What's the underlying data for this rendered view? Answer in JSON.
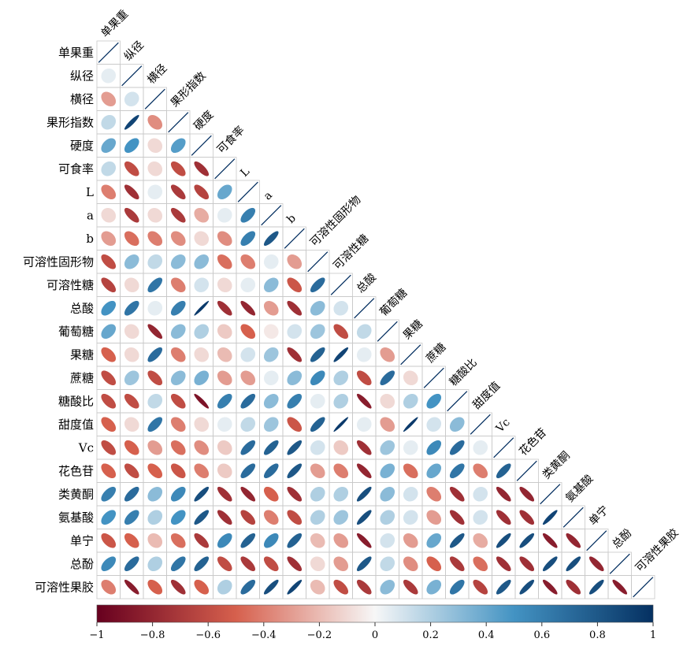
{
  "chart_data": {
    "type": "heatmap",
    "subtype": "correlation-ellipse-lower-triangle",
    "variables": [
      "单果重",
      "纵径",
      "横径",
      "果形指数",
      "硬度",
      "可食率",
      "L",
      "a",
      "b",
      "可溶性固形物",
      "可溶性糖",
      "总酸",
      "葡萄糖",
      "果糖",
      "蔗糖",
      "糖酸比",
      "甜度值",
      "Vc",
      "花色苷",
      "类黄酮",
      "氨基酸",
      "单宁",
      "总酚",
      "可溶性果胶"
    ],
    "matrix": [
      [
        1
      ],
      [
        0.05,
        1
      ],
      [
        -0.3,
        0.1,
        1
      ],
      [
        0.15,
        0.9,
        -0.35,
        1
      ],
      [
        0.4,
        0.5,
        -0.1,
        0.45,
        1
      ],
      [
        0.15,
        -0.6,
        -0.1,
        -0.6,
        -0.75,
        1
      ],
      [
        -0.4,
        -0.75,
        0.05,
        -0.7,
        -0.65,
        0.4,
        1
      ],
      [
        -0.1,
        -0.7,
        -0.1,
        -0.7,
        -0.25,
        0.05,
        0.6,
        1
      ],
      [
        -0.3,
        -0.45,
        -0.4,
        -0.35,
        -0.1,
        -0.35,
        0.6,
        0.8,
        1
      ],
      [
        -0.6,
        0.3,
        0.15,
        0.3,
        0.3,
        -0.45,
        -0.4,
        0.05,
        -0.3,
        1
      ],
      [
        -0.65,
        -0.1,
        0.65,
        -0.4,
        0.1,
        -0.1,
        0.05,
        0.3,
        -0.55,
        0.7,
        1
      ],
      [
        0.5,
        0.65,
        0.05,
        0.6,
        0.95,
        -0.75,
        -0.8,
        -0.3,
        -0.75,
        0.3,
        0.1,
        1
      ],
      [
        0.4,
        -0.1,
        -0.8,
        0.3,
        0.2,
        -0.15,
        -0.5,
        -0.05,
        0.1,
        0.25,
        -0.6,
        0.15,
        1
      ],
      [
        -0.5,
        -0.1,
        0.7,
        -0.4,
        -0.1,
        -0.2,
        0.1,
        0.25,
        -0.75,
        0.75,
        0.9,
        0.05,
        -0.3,
        1
      ],
      [
        -0.6,
        0.25,
        -0.6,
        0.3,
        0.35,
        -0.3,
        -0.3,
        0.05,
        0.3,
        0.55,
        0.2,
        -0.6,
        0.7,
        -0.1,
        1
      ],
      [
        -0.6,
        -0.6,
        0.15,
        -0.6,
        -0.9,
        0.6,
        0.7,
        0.3,
        0.6,
        0.05,
        0.2,
        -0.85,
        -0.1,
        0.2,
        0.5,
        1
      ],
      [
        -0.5,
        -0.1,
        0.65,
        -0.4,
        -0.1,
        0.05,
        0.15,
        0.25,
        -0.55,
        0.75,
        0.95,
        0.05,
        -0.3,
        0.95,
        0.1,
        0.3,
        1
      ],
      [
        -0.6,
        -0.5,
        -0.3,
        -0.45,
        -0.35,
        -0.15,
        0.7,
        0.75,
        0.8,
        0.1,
        -0.15,
        -0.75,
        0.25,
        0.05,
        0.55,
        0.7,
        0.05,
        1
      ],
      [
        -0.5,
        -0.6,
        -0.5,
        -0.55,
        -0.4,
        -0.15,
        0.7,
        0.7,
        0.8,
        -0.3,
        -0.4,
        -0.8,
        0.35,
        -0.45,
        0.4,
        0.65,
        -0.4,
        0.75,
        1
      ],
      [
        0.6,
        0.7,
        0.3,
        0.55,
        0.85,
        -0.75,
        -0.8,
        -0.5,
        -0.75,
        0.2,
        0.2,
        0.85,
        0.3,
        0.1,
        -0.4,
        -0.75,
        0.1,
        -0.8,
        -0.8,
        1
      ],
      [
        0.5,
        0.6,
        0.2,
        0.5,
        0.8,
        -0.75,
        -0.65,
        -0.4,
        -0.6,
        0.2,
        0.25,
        0.85,
        0.2,
        0.1,
        -0.3,
        -0.75,
        0.1,
        -0.75,
        -0.75,
        0.9,
        1
      ],
      [
        -0.55,
        -0.5,
        -0.2,
        -0.45,
        -0.7,
        0.55,
        0.75,
        0.55,
        0.75,
        -0.2,
        -0.3,
        -0.85,
        0.1,
        -0.3,
        0.4,
        0.8,
        -0.25,
        0.85,
        0.85,
        -0.85,
        -0.8,
        1
      ],
      [
        0.55,
        0.7,
        0.2,
        0.65,
        0.75,
        -0.6,
        -0.7,
        -0.6,
        -0.75,
        -0.1,
        -0.3,
        0.8,
        0.15,
        -0.35,
        -0.5,
        -0.7,
        -0.45,
        -0.75,
        -0.75,
        0.85,
        0.85,
        -0.8,
        1
      ],
      [
        -0.4,
        -0.85,
        -0.5,
        -0.75,
        -0.5,
        0.2,
        0.7,
        0.85,
        0.9,
        -0.2,
        -0.6,
        -0.7,
        0.3,
        -0.7,
        0.35,
        0.65,
        -0.65,
        0.8,
        0.85,
        -0.85,
        -0.75,
        0.85,
        -0.85,
        1
      ]
    ],
    "colorbar": {
      "min": -1,
      "max": 1,
      "ticks": [
        "−1",
        "−0.8",
        "−0.6",
        "−0.4",
        "−0.2",
        "0",
        "0.2",
        "0.4",
        "0.6",
        "0.8",
        "1"
      ],
      "tick_values": [
        -1,
        -0.8,
        -0.6,
        -0.4,
        -0.2,
        0,
        0.2,
        0.4,
        0.6,
        0.8,
        1
      ]
    },
    "colors": {
      "neg_strong": "#67001F",
      "neg_mid": "#D6604D",
      "neutral": "#F7F7F7",
      "pos_mid": "#4393C3",
      "pos_strong": "#053061"
    }
  }
}
